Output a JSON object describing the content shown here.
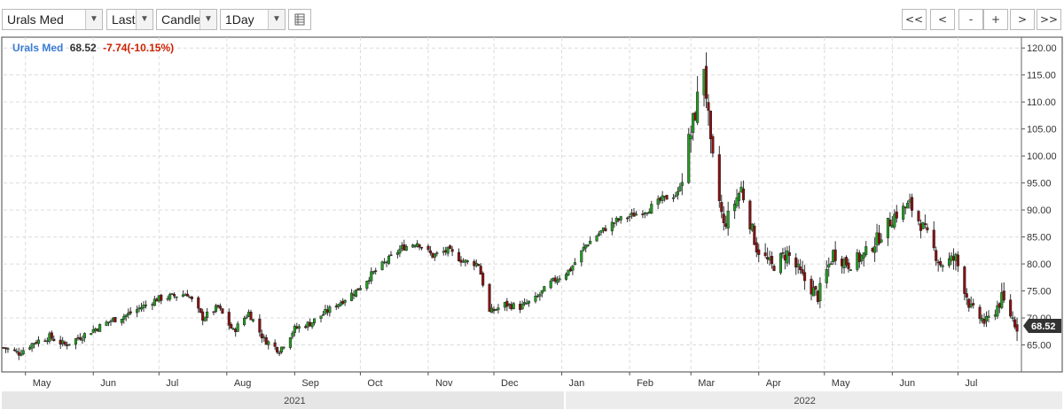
{
  "toolbar": {
    "symbol": "Urals Med",
    "price_type": "Last",
    "chart_style": "Candle",
    "interval": "1Day",
    "table_icon": "table-icon",
    "nav": [
      "<<",
      "<",
      "-",
      "+",
      ">",
      ">>"
    ]
  },
  "chart_data": {
    "type": "candlestick",
    "instrument": "Urals Med",
    "last": "68.52",
    "change": "-7.74(-10.15%)",
    "last_label": "68.52",
    "ylim": [
      60,
      122
    ],
    "yticks": [
      65,
      70,
      75,
      80,
      85,
      90,
      95,
      100,
      105,
      110,
      115,
      120
    ],
    "ytick_labels": [
      "65.00",
      "70.00",
      "75.00",
      "80.00",
      "85.00",
      "90.00",
      "95.00",
      "100.00",
      "105.00",
      "110.00",
      "115.00",
      "120.00"
    ],
    "x_start": "2021-04-21",
    "x_end": "2022-07-30",
    "months": [
      {
        "label": "May",
        "date": "2021-05-01"
      },
      {
        "label": "Jun",
        "date": "2021-06-01"
      },
      {
        "label": "Jul",
        "date": "2021-07-01"
      },
      {
        "label": "Aug",
        "date": "2021-08-01"
      },
      {
        "label": "Sep",
        "date": "2021-09-01"
      },
      {
        "label": "Oct",
        "date": "2021-10-01"
      },
      {
        "label": "Nov",
        "date": "2021-11-01"
      },
      {
        "label": "Dec",
        "date": "2021-12-01"
      },
      {
        "label": "Jan",
        "date": "2022-01-01"
      },
      {
        "label": "Feb",
        "date": "2022-02-01"
      },
      {
        "label": "Mar",
        "date": "2022-03-01"
      },
      {
        "label": "Apr",
        "date": "2022-04-01"
      },
      {
        "label": "May",
        "date": "2022-05-01"
      },
      {
        "label": "Jun",
        "date": "2022-06-01"
      },
      {
        "label": "Jul",
        "date": "2022-07-01"
      }
    ],
    "years": [
      {
        "label": "2021",
        "date": "2021-09-01"
      },
      {
        "label": "2022",
        "date": "2022-04-22"
      }
    ],
    "closes": [
      [
        "2021-04-21",
        64.5
      ],
      [
        "2021-04-28",
        63.5
      ],
      [
        "2021-05-05",
        65.5
      ],
      [
        "2021-05-12",
        66.5
      ],
      [
        "2021-05-19",
        65.0
      ],
      [
        "2021-05-26",
        66.5
      ],
      [
        "2021-06-02",
        68.0
      ],
      [
        "2021-06-09",
        69.5
      ],
      [
        "2021-06-16",
        70.5
      ],
      [
        "2021-06-23",
        72.0
      ],
      [
        "2021-06-30",
        73.5
      ],
      [
        "2021-07-07",
        74.0
      ],
      [
        "2021-07-14",
        74.5
      ],
      [
        "2021-07-21",
        70.0
      ],
      [
        "2021-07-28",
        72.0
      ],
      [
        "2021-08-04",
        67.5
      ],
      [
        "2021-08-11",
        71.0
      ],
      [
        "2021-08-18",
        66.0
      ],
      [
        "2021-08-25",
        64.0
      ],
      [
        "2021-09-01",
        68.0
      ],
      [
        "2021-09-08",
        69.0
      ],
      [
        "2021-09-15",
        71.0
      ],
      [
        "2021-09-22",
        73.0
      ],
      [
        "2021-09-29",
        75.0
      ],
      [
        "2021-10-06",
        78.0
      ],
      [
        "2021-10-13",
        80.5
      ],
      [
        "2021-10-20",
        83.0
      ],
      [
        "2021-10-27",
        84.0
      ],
      [
        "2021-11-03",
        81.5
      ],
      [
        "2021-11-10",
        82.5
      ],
      [
        "2021-11-17",
        80.5
      ],
      [
        "2021-11-24",
        80.0
      ],
      [
        "2021-11-29",
        71.0
      ],
      [
        "2021-12-06",
        72.5
      ],
      [
        "2021-12-13",
        72.0
      ],
      [
        "2021-12-20",
        73.5
      ],
      [
        "2021-12-27",
        76.5
      ],
      [
        "2022-01-05",
        79.0
      ],
      [
        "2022-01-12",
        83.5
      ],
      [
        "2022-01-19",
        86.0
      ],
      [
        "2022-01-26",
        88.0
      ],
      [
        "2022-02-02",
        89.0
      ],
      [
        "2022-02-09",
        90.0
      ],
      [
        "2022-02-16",
        92.0
      ],
      [
        "2022-02-23",
        93.0
      ],
      [
        "2022-03-02",
        106.0
      ],
      [
        "2022-03-07",
        117.0
      ],
      [
        "2022-03-10",
        101.0
      ],
      [
        "2022-03-16",
        87.0
      ],
      [
        "2022-03-24",
        94.0
      ],
      [
        "2022-03-31",
        83.0
      ],
      [
        "2022-04-07",
        79.5
      ],
      [
        "2022-04-14",
        82.0
      ],
      [
        "2022-04-21",
        77.5
      ],
      [
        "2022-04-28",
        74.0
      ],
      [
        "2022-05-05",
        82.0
      ],
      [
        "2022-05-12",
        80.0
      ],
      [
        "2022-05-19",
        81.5
      ],
      [
        "2022-05-26",
        85.0
      ],
      [
        "2022-06-02",
        89.0
      ],
      [
        "2022-06-09",
        91.0
      ],
      [
        "2022-06-16",
        86.0
      ],
      [
        "2022-06-23",
        80.0
      ],
      [
        "2022-06-30",
        81.0
      ],
      [
        "2022-07-07",
        71.5
      ],
      [
        "2022-07-14",
        69.0
      ],
      [
        "2022-07-21",
        73.5
      ],
      [
        "2022-07-28",
        68.5
      ]
    ]
  }
}
